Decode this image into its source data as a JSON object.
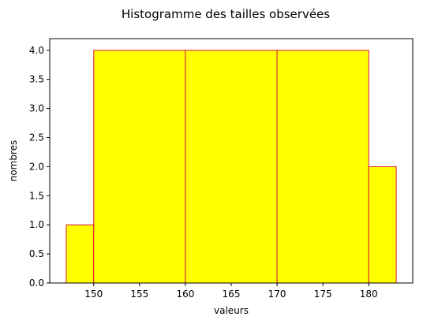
{
  "chart_data": {
    "type": "bar",
    "title": "Histogramme des tailles observées",
    "xlabel": "valeurs",
    "ylabel": "nombres",
    "bins": [
      {
        "x0": 147,
        "x1": 150,
        "value": 1
      },
      {
        "x0": 150,
        "x1": 160,
        "value": 4
      },
      {
        "x0": 160,
        "x1": 170,
        "value": 4
      },
      {
        "x0": 170,
        "x1": 180,
        "value": 4
      },
      {
        "x0": 180,
        "x1": 183,
        "value": 2
      }
    ],
    "xlim": [
      145.2,
      184.8
    ],
    "ylim": [
      0,
      4.2
    ],
    "xticks": [
      150,
      155,
      160,
      165,
      170,
      175,
      180
    ],
    "yticks": [
      0.0,
      0.5,
      1.0,
      1.5,
      2.0,
      2.5,
      3.0,
      3.5,
      4.0
    ],
    "xtick_labels": [
      "150",
      "155",
      "160",
      "165",
      "170",
      "175",
      "180"
    ],
    "ytick_labels": [
      "0.0",
      "0.5",
      "1.0",
      "1.5",
      "2.0",
      "2.5",
      "3.0",
      "3.5",
      "4.0"
    ],
    "bar_fill": "#ffff00",
    "bar_edge": "#dc143c",
    "grid": false,
    "legend": "none"
  }
}
